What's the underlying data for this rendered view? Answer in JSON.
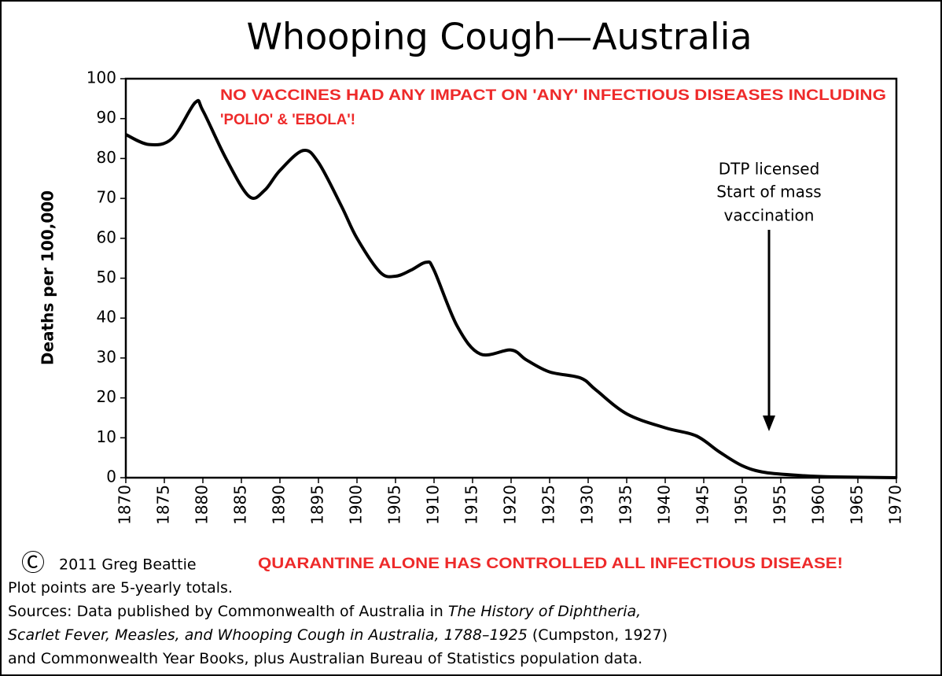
{
  "chart_data": {
    "type": "line",
    "title": "Whooping Cough—Australia",
    "y_label": "Deaths per 100,000",
    "x": [
      1870,
      1873,
      1876,
      1879,
      1880,
      1883,
      1886,
      1888,
      1890,
      1893,
      1895,
      1898,
      1900,
      1903,
      1905,
      1907,
      1909,
      1910,
      1913,
      1916,
      1920,
      1922,
      1925,
      1929,
      1931,
      1935,
      1940,
      1944,
      1947,
      1950,
      1953,
      1958,
      1962,
      1970
    ],
    "values": [
      86,
      83.5,
      85,
      94,
      92,
      80,
      70.5,
      72,
      77,
      82,
      79,
      68,
      60,
      51.5,
      50.5,
      52,
      54,
      52,
      38,
      31,
      32,
      29.5,
      26.5,
      25,
      22,
      16,
      12.5,
      10.5,
      6.5,
      3,
      1.3,
      0.5,
      0.2,
      0
    ],
    "color": "#000000",
    "xlim": [
      1870,
      1970
    ],
    "xticks": [
      1870,
      1875,
      1880,
      1885,
      1890,
      1895,
      1900,
      1905,
      1910,
      1915,
      1920,
      1925,
      1930,
      1935,
      1940,
      1945,
      1950,
      1955,
      1960,
      1965,
      1970
    ],
    "ylim": [
      0,
      100
    ],
    "yticks": [
      0,
      10,
      20,
      30,
      40,
      50,
      60,
      70,
      80,
      90,
      100
    ],
    "annotations": {
      "claim": [
        "NO VACCINES HAD ANY IMPACT ON 'ANY' INFECTIOUS DISEASES INCLUDING",
        "'POLIO' & 'EBOLA'!"
      ],
      "dtp": [
        "DTP licensed",
        "Start of mass",
        "vaccination"
      ]
    }
  },
  "footer": {
    "copyright_symbol": "Ⓒ",
    "copyright": "2011 Greg Beattie",
    "claim": "QUARANTINE ALONE HAS CONTROLLED ALL INFECTIOUS DISEASE!",
    "lines": [
      [
        {
          "text": "Plot points are 5-yearly totals.",
          "italic": false
        }
      ],
      [
        {
          "text": "Sources: Data published by Commonwealth of Australia in ",
          "italic": false
        },
        {
          "text": "The History of Diphtheria,",
          "italic": true
        }
      ],
      [
        {
          "text": "Scarlet Fever, Measles, and Whooping Cough in Australia, 1788–1925",
          "italic": true
        },
        {
          "text": " (Cumpston, 1927)",
          "italic": false
        }
      ],
      [
        {
          "text": "and Commonwealth Year Books, plus Australian Bureau of Statistics population data.",
          "italic": false
        }
      ]
    ]
  }
}
